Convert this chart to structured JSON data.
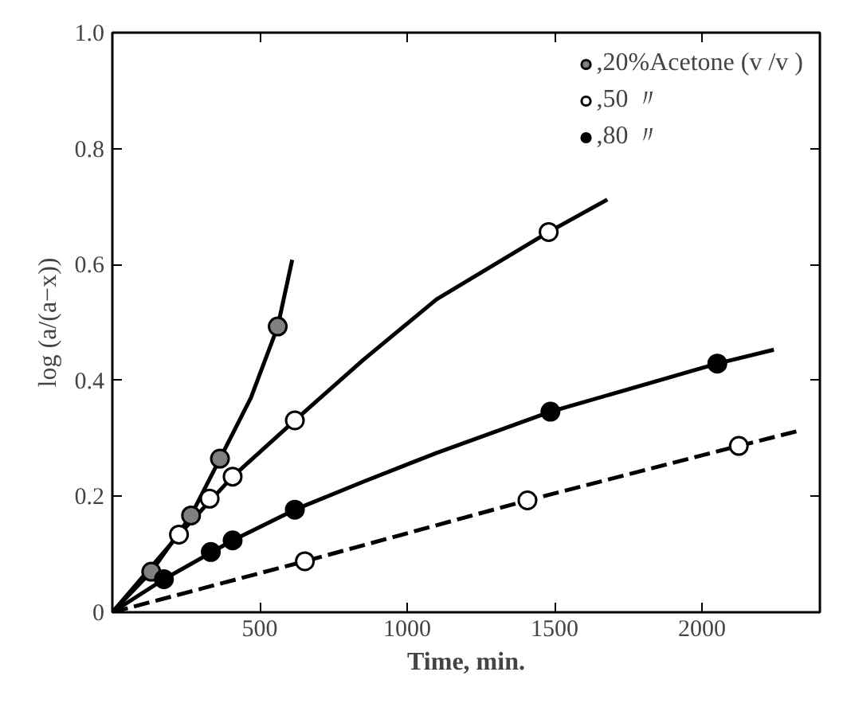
{
  "chart_data": {
    "type": "scatter",
    "xlabel": "Time, min.",
    "ylabel": "log (a/(a−x))",
    "xlim": [
      0,
      2400
    ],
    "ylim": [
      0,
      1.0
    ],
    "xticks": [
      500,
      1000,
      1500,
      2000
    ],
    "yticks": [
      0,
      0.2,
      0.4,
      0.6,
      0.8,
      {
        "value": 1.0,
        "label": "1.0"
      }
    ],
    "grid": false,
    "legend": "top right",
    "marker": "circle",
    "series": [
      {
        "name": ",20%Acetone (v /v )",
        "color": "#808080",
        "x": [
          132,
          267,
          365,
          561
        ],
        "values": [
          0.07,
          0.167,
          0.265,
          0.493
        ]
      },
      {
        "name": ",50 〃",
        "color": "#ffffff",
        "x": [
          226,
          330,
          408,
          619,
          1480
        ],
        "values": [
          0.134,
          0.196,
          0.234,
          0.331,
          0.656
        ]
      },
      {
        "name": ",80 〃",
        "color": "#000000",
        "x": [
          175,
          334,
          408,
          619,
          1486,
          2052
        ],
        "values": [
          0.057,
          0.104,
          0.124,
          0.177,
          0.346,
          0.429
        ]
      },
      {
        "color": "#ffffff",
        "x": [
          653,
          1408,
          2125
        ],
        "values": [
          0.088,
          0.193,
          0.287
        ]
      },
      {
        "type": "line",
        "marker": "none",
        "color": "#000000",
        "line_style": "solid",
        "x": [
          0,
          132,
          267,
          365,
          470,
          561,
          610
        ],
        "values": [
          0,
          0.07,
          0.167,
          0.265,
          0.37,
          0.493,
          0.608
        ]
      },
      {
        "type": "line",
        "marker": "none",
        "color": "#000000",
        "line_style": "solid",
        "x": [
          0,
          226,
          408,
          619,
          850,
          1100,
          1480,
          1679
        ],
        "values": [
          0,
          0.134,
          0.234,
          0.331,
          0.435,
          0.54,
          0.656,
          0.712
        ]
      },
      {
        "type": "line",
        "marker": "none",
        "color": "#000000",
        "line_style": "solid",
        "x": [
          0,
          175,
          408,
          619,
          850,
          1100,
          1486,
          2052,
          2244
        ],
        "values": [
          0,
          0.057,
          0.124,
          0.177,
          0.225,
          0.275,
          0.346,
          0.429,
          0.453
        ]
      },
      {
        "type": "line",
        "marker": "none",
        "color": "#000000",
        "line_style": "dashed",
        "x": [
          0,
          653,
          1408,
          2125,
          2320
        ],
        "values": [
          0,
          0.088,
          0.193,
          0.287,
          0.312
        ]
      }
    ]
  }
}
